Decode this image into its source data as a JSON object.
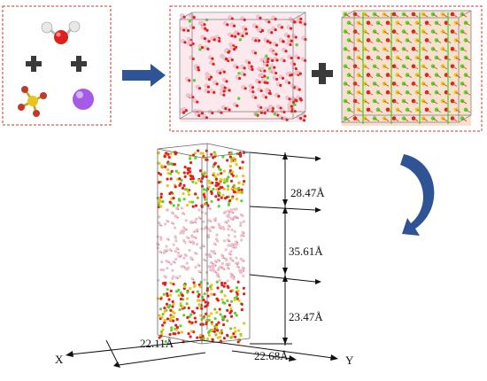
{
  "dimensions": {
    "top_height": "28.47Å",
    "middle_height": "35.61Å",
    "bottom_height": "23.47Å",
    "x_width": "22.11Å",
    "y_width": "22.68Å"
  },
  "axes": {
    "x": "X",
    "y": "Y"
  },
  "colors": {
    "box_border": "#c0392b",
    "oxygen": "#e0211b",
    "hydrogen": "#f3c6cf",
    "sulfur": "#e8c51c",
    "chlorine": "#55d52f",
    "potassium": "#a55be6",
    "operator": "#3a3a3a",
    "arrow": "#2f5496"
  },
  "icons": [
    "water-molecule-icon",
    "plus-icon",
    "sulfate-ion-icon",
    "potassium-ion-icon",
    "right-arrow-icon",
    "curved-down-arrow-icon"
  ]
}
